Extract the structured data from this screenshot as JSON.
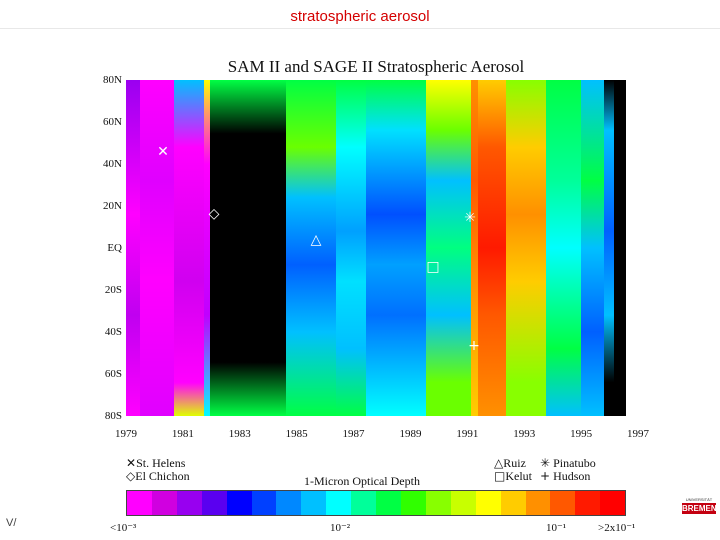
{
  "slide": {
    "title": "stratospheric aerosol",
    "number": "V/"
  },
  "plot": {
    "title": "SAM II and SAGE II Stratospheric Aerosol",
    "y_ticks": [
      "80N",
      "60N",
      "40N",
      "20N",
      "EQ",
      "20S",
      "40S",
      "60S",
      "80S"
    ],
    "x_ticks": [
      "1979",
      "1981",
      "1983",
      "1985",
      "1987",
      "1989",
      "1991",
      "1993",
      "1995",
      "1997"
    ],
    "legend": {
      "st_helens": "St. Helens",
      "el_chichon": "El Chichon",
      "ruiz": "Ruiz",
      "kelut": "Kelut",
      "pinatubo": "Pinatubo",
      "hudson": "Hudson",
      "colorbar_title": "1-Micron Optical Depth",
      "colorbar_labels": {
        "low": "<10⁻³",
        "mid1": "10⁻²",
        "mid2": "10⁻¹",
        "high": ">2x10⁻¹"
      }
    },
    "markers": {
      "st_helens": "✕",
      "el_chichon": "◇",
      "ruiz": "△",
      "kelut": "□",
      "pinatubo": "✳",
      "hudson": "+"
    },
    "colorbar_colors": [
      "#ff00ff",
      "#d000e0",
      "#9800f0",
      "#5a00f0",
      "#0000ff",
      "#0040ff",
      "#0088ff",
      "#00c0ff",
      "#00ffff",
      "#00ff9a",
      "#00ff44",
      "#30ff00",
      "#88ff00",
      "#c8ff00",
      "#ffff00",
      "#ffcc00",
      "#ff9000",
      "#ff5800",
      "#ff1a00",
      "#ff0000"
    ]
  },
  "logo": {
    "top": "UNIVERSITÄT",
    "name": "BREMEN"
  }
}
